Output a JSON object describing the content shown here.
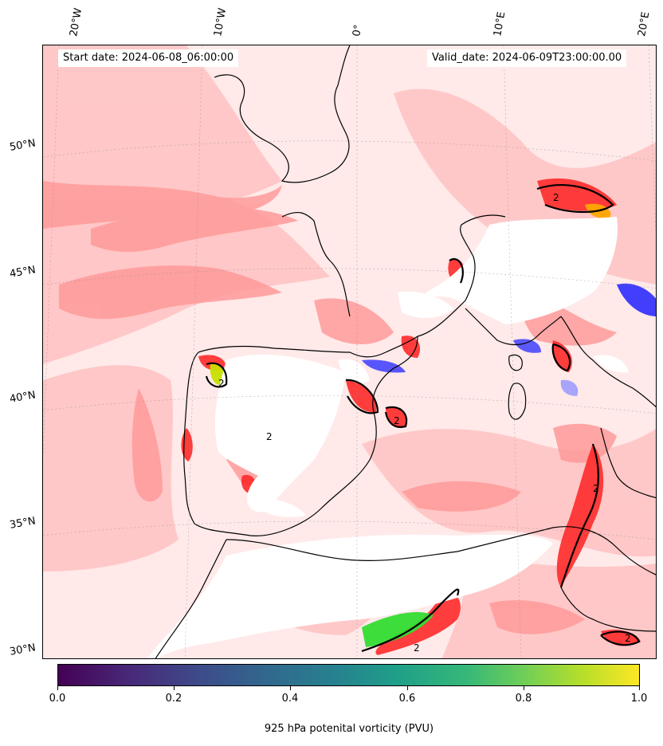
{
  "map": {
    "start_date": "Start date: 2024-06-08_06:00:00",
    "valid_date": "Valid_date: 2024-06-09T23:00:00.00",
    "longitude_labels": [
      "20°W",
      "10°W",
      "0°",
      "10°E",
      "20°E"
    ],
    "latitude_labels": [
      "50°N",
      "45°N",
      "40°N",
      "35°N",
      "30°N"
    ],
    "contour_level_label": "2",
    "fill_colors": {
      "background": "#ffe9e9",
      "light_red": "#ffbcbc",
      "mid_red": "#ff8a8a",
      "strong_red": "#ff2a2a",
      "masked": "#ffffff",
      "negative": "#2020ff"
    }
  },
  "colorbar": {
    "colormap": "viridis",
    "ticks": [
      "0.0",
      "0.2",
      "0.4",
      "0.6",
      "0.8",
      "1.0"
    ],
    "range": [
      0.0,
      1.0
    ],
    "label": "925 hPa potenital vorticity (PVU)"
  }
}
